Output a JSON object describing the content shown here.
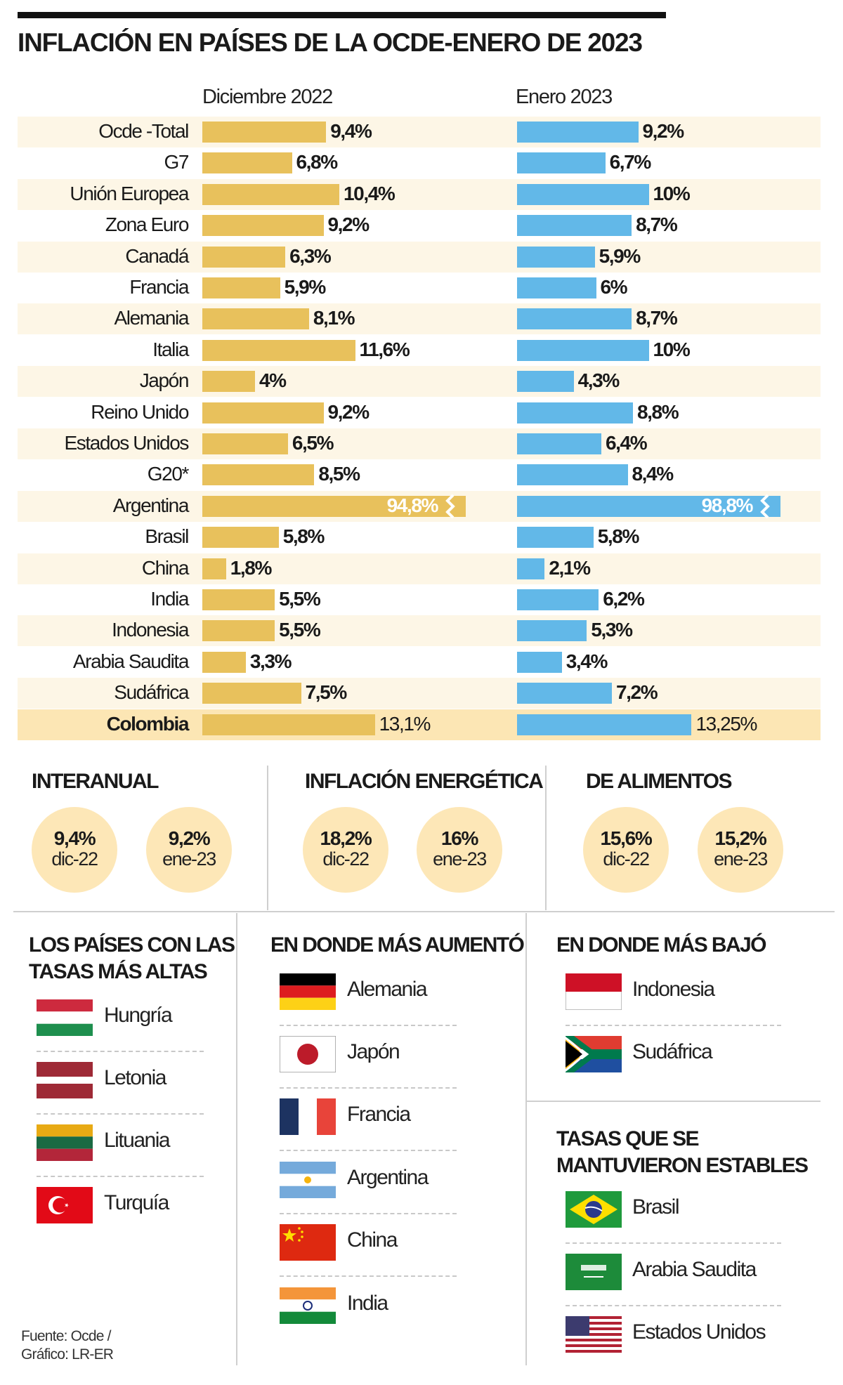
{
  "title": "INFLACIÓN EN PAÍSES DE LA OCDE-ENERO DE 2023",
  "chart_data": {
    "type": "bar",
    "title": "INFLACIÓN EN PAÍSES DE LA OCDE-ENERO DE 2023",
    "orientation": "horizontal",
    "categories": [
      "Ocde -Total",
      "G7",
      "Unión Europea",
      "Zona Euro",
      "Canadá",
      "Francia",
      "Alemania",
      "Italia",
      "Japón",
      "Reino Unido",
      "Estados Unidos",
      "G20*",
      "Argentina",
      "Brasil",
      "China",
      "India",
      "Indonesia",
      "Arabia Saudita",
      "Sudáfrica",
      "Colombia"
    ],
    "series": [
      {
        "name": "Diciembre 2022",
        "color": "#e8c15c",
        "values": [
          9.4,
          6.8,
          10.4,
          9.2,
          6.3,
          5.9,
          8.1,
          11.6,
          4,
          9.2,
          6.5,
          8.5,
          94.8,
          5.8,
          1.8,
          5.5,
          5.5,
          3.3,
          7.5,
          13.1
        ],
        "labels": [
          "9,4%",
          "6,8%",
          "10,4%",
          "9,2%",
          "6,3%",
          "5,9%",
          "8,1%",
          "11,6%",
          "4%",
          "9,2%",
          "6,5%",
          "8,5%",
          "94,8%",
          "5,8%",
          "1,8%",
          "5,5%",
          "5,5%",
          "3,3%",
          "7,5%",
          "13,1%"
        ]
      },
      {
        "name": "Enero 2023",
        "color": "#62b8e8",
        "values": [
          9.2,
          6.7,
          10,
          8.7,
          5.9,
          6,
          8.7,
          10,
          4.3,
          8.8,
          6.4,
          8.4,
          98.8,
          5.8,
          2.1,
          6.2,
          5.3,
          3.4,
          7.2,
          13.25
        ],
        "labels": [
          "9,2%",
          "6,7%",
          "10%",
          "8,7%",
          "5,9%",
          "6%",
          "8,7%",
          "10%",
          "4,3%",
          "8,8%",
          "6,4%",
          "8,4%",
          "98,8%",
          "5,8%",
          "2,1%",
          "6,2%",
          "5,3%",
          "3,4%",
          "7,2%",
          "13,25%"
        ]
      }
    ],
    "highlight": "Colombia",
    "broken_bars": [
      "Argentina"
    ],
    "xlabel": "",
    "ylabel": "",
    "grid": false
  },
  "stats": [
    {
      "heading": "INTERANUAL",
      "items": [
        {
          "value": "9,4%",
          "period": "dic-22"
        },
        {
          "value": "9,2%",
          "period": "ene-23"
        }
      ]
    },
    {
      "heading": "INFLACIÓN ENERGÉTICA",
      "items": [
        {
          "value": "18,2%",
          "period": "dic-22"
        },
        {
          "value": "16%",
          "period": "ene-23"
        }
      ]
    },
    {
      "heading": "DE ALIMENTOS",
      "items": [
        {
          "value": "15,6%",
          "period": "dic-22"
        },
        {
          "value": "15,2%",
          "period": "ene-23"
        }
      ]
    }
  ],
  "lists": {
    "highest": {
      "heading_1": "LOS PAÍSES CON LAS",
      "heading_2": "TASAS MÁS ALTAS",
      "countries": [
        {
          "name": "Hungría",
          "flag": "hungary-flag"
        },
        {
          "name": "Letonia",
          "flag": "latvia-flag"
        },
        {
          "name": "Lituania",
          "flag": "lithuania-flag"
        },
        {
          "name": "Turquía",
          "flag": "turkey-flag"
        }
      ]
    },
    "increased": {
      "heading": "EN DONDE MÁS AUMENTÓ",
      "countries": [
        {
          "name": "Alemania",
          "flag": "germany-flag"
        },
        {
          "name": "Japón",
          "flag": "japan-flag"
        },
        {
          "name": "Francia",
          "flag": "france-flag"
        },
        {
          "name": "Argentina",
          "flag": "argentina-flag"
        },
        {
          "name": "China",
          "flag": "china-flag"
        },
        {
          "name": "India",
          "flag": "india-flag"
        }
      ]
    },
    "decreased": {
      "heading": "EN DONDE MÁS BAJÓ",
      "countries": [
        {
          "name": "Indonesia",
          "flag": "indonesia-flag"
        },
        {
          "name": "Sudáfrica",
          "flag": "south-africa-flag"
        }
      ]
    },
    "stable": {
      "heading_1": "TASAS QUE SE",
      "heading_2": "MANTUVIERON ESTABLES",
      "countries": [
        {
          "name": "Brasil",
          "flag": "brazil-flag"
        },
        {
          "name": "Arabia Saudita",
          "flag": "saudi-arabia-flag"
        },
        {
          "name": "Estados Unidos",
          "flag": "usa-flag"
        }
      ]
    }
  },
  "footer": {
    "line1": "Fuente: Ocde /",
    "line2": "Gráfico: LR-ER"
  }
}
